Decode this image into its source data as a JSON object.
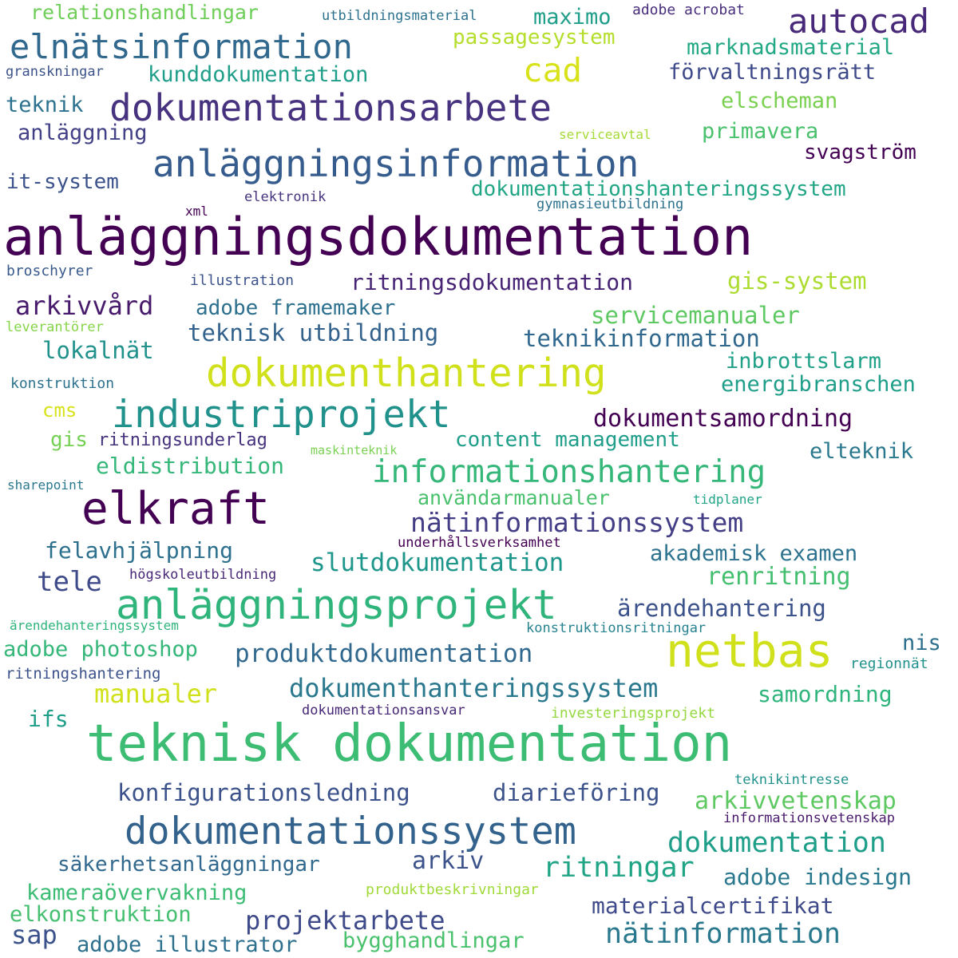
{
  "words": [
    {
      "text": "anläggningsdokumentation",
      "color": "#440154"
    },
    {
      "text": "teknisk dokumentation",
      "color": "#3dbc74"
    },
    {
      "text": "dokumentationsarbete",
      "color": "#46327e"
    },
    {
      "text": "elkraft",
      "color": "#440154"
    },
    {
      "text": "dokumenthantering",
      "color": "#d0e11c"
    },
    {
      "text": "anläggningsinformation",
      "color": "#365c8d"
    },
    {
      "text": "anläggningsprojekt",
      "color": "#2fb47c"
    },
    {
      "text": "industriprojekt",
      "color": "#21918c"
    },
    {
      "text": "netbas",
      "color": "#d0e11c"
    },
    {
      "text": "dokumentationssystem",
      "color": "#33638d"
    },
    {
      "text": "elnätsinformation",
      "color": "#31688e"
    },
    {
      "text": "autocad",
      "color": "#482878"
    },
    {
      "text": "informationshantering",
      "color": "#35b779"
    },
    {
      "text": "cad",
      "color": "#d8e219"
    },
    {
      "text": "nätinformationssystem",
      "color": "#433e85"
    },
    {
      "text": "dokumentation",
      "color": "#1f9e89"
    },
    {
      "text": "nätinformation",
      "color": "#2a788e"
    },
    {
      "text": "ritningar",
      "color": "#20a486"
    },
    {
      "text": "dokumenthanteringssystem",
      "color": "#2a788e"
    },
    {
      "text": "dokumentsamordning",
      "color": "#440154"
    },
    {
      "text": "slutdokumentation",
      "color": "#1f968b"
    },
    {
      "text": "produktdokumentation",
      "color": "#31688e"
    },
    {
      "text": "projektarbete",
      "color": "#3e4a89"
    },
    {
      "text": "konfigurationsledning",
      "color": "#3b528b"
    },
    {
      "text": "diarieföring",
      "color": "#3b528b"
    },
    {
      "text": "arkivvetenskap",
      "color": "#5ec962"
    },
    {
      "text": "förvaltningsrätt",
      "color": "#3e4a89"
    },
    {
      "text": "kunddokumentation",
      "color": "#1f9e89"
    },
    {
      "text": "relationshandlingar",
      "color": "#6ece58"
    },
    {
      "text": "utbildningsmaterial",
      "color": "#2c728e"
    },
    {
      "text": "maximo",
      "color": "#1f9e89"
    },
    {
      "text": "adobe acrobat",
      "color": "#472d7b"
    },
    {
      "text": "passagesystem",
      "color": "#b5de2b"
    },
    {
      "text": "marknadsmaterial",
      "color": "#22a884"
    },
    {
      "text": "granskningar",
      "color": "#3b528b"
    },
    {
      "text": "teknik",
      "color": "#2c728e"
    },
    {
      "text": "elscheman",
      "color": "#7ad151"
    },
    {
      "text": "anläggning",
      "color": "#424086"
    },
    {
      "text": "primavera",
      "color": "#4ac16d"
    },
    {
      "text": "serviceavtal",
      "color": "#a5db36"
    },
    {
      "text": "svagström",
      "color": "#440154"
    },
    {
      "text": "it-system",
      "color": "#3b528b"
    },
    {
      "text": "dokumentationshanteringssystem",
      "color": "#21a685"
    },
    {
      "text": "elektronik",
      "color": "#46337e"
    },
    {
      "text": "gymnasieutbildning",
      "color": "#2c728e"
    },
    {
      "text": "xml",
      "color": "#440154"
    },
    {
      "text": "broschyrer",
      "color": "#38598c"
    },
    {
      "text": "illustration",
      "color": "#3b528b"
    },
    {
      "text": "ritningsdokumentation",
      "color": "#482475"
    },
    {
      "text": "gis-system",
      "color": "#addc30"
    },
    {
      "text": "arkivvård",
      "color": "#481a6c"
    },
    {
      "text": "adobe framemaker",
      "color": "#2d708e"
    },
    {
      "text": "servicemanualer",
      "color": "#5ec962"
    },
    {
      "text": "leverantörer",
      "color": "#86d549"
    },
    {
      "text": "teknisk utbildning",
      "color": "#33638d"
    },
    {
      "text": "teknikinformation",
      "color": "#31688e"
    },
    {
      "text": "lokalnät",
      "color": "#21918c"
    },
    {
      "text": "inbrottslarm",
      "color": "#1fa088"
    },
    {
      "text": "konstruktion",
      "color": "#2c728e"
    },
    {
      "text": "energibranschen",
      "color": "#1f9e89"
    },
    {
      "text": "cms",
      "color": "#d8e219"
    },
    {
      "text": "gis",
      "color": "#75d054"
    },
    {
      "text": "ritningsunderlag",
      "color": "#46327e"
    },
    {
      "text": "maskinteknik",
      "color": "#7ad151"
    },
    {
      "text": "content management",
      "color": "#1f9e89"
    },
    {
      "text": "elteknik",
      "color": "#2a788e"
    },
    {
      "text": "eldistribution",
      "color": "#35b779"
    },
    {
      "text": "sharepoint",
      "color": "#2a788e"
    },
    {
      "text": "användarmanualer",
      "color": "#4ac16d"
    },
    {
      "text": "tidplaner",
      "color": "#20a486"
    },
    {
      "text": "felavhjälpning",
      "color": "#2d708e"
    },
    {
      "text": "underhållsverksamhet",
      "color": "#440154"
    },
    {
      "text": "akademisk examen",
      "color": "#2c728e"
    },
    {
      "text": "tele",
      "color": "#3e4a89"
    },
    {
      "text": "högskoleutbildning",
      "color": "#482878"
    },
    {
      "text": "renritning",
      "color": "#44bf70"
    },
    {
      "text": "ärendehantering",
      "color": "#3b528b"
    },
    {
      "text": "ärendehanteringssystem",
      "color": "#2fb47c"
    },
    {
      "text": "konstruktionsritningar",
      "color": "#26828e"
    },
    {
      "text": "adobe photoshop",
      "color": "#35b779"
    },
    {
      "text": "nis",
      "color": "#2d708e"
    },
    {
      "text": "regionnät",
      "color": "#21918c"
    },
    {
      "text": "ritningshantering",
      "color": "#3b528b"
    },
    {
      "text": "manualer",
      "color": "#d0e11c"
    },
    {
      "text": "samordning",
      "color": "#2fb47c"
    },
    {
      "text": "dokumentationsansvar",
      "color": "#482878"
    },
    {
      "text": "investeringsprojekt",
      "color": "#95d840"
    },
    {
      "text": "ifs",
      "color": "#1f9e89"
    },
    {
      "text": "teknikintresse",
      "color": "#21918c"
    },
    {
      "text": "informationsvetenskap",
      "color": "#481a6c"
    },
    {
      "text": "säkerhetsanläggningar",
      "color": "#31688e"
    },
    {
      "text": "arkiv",
      "color": "#3b528b"
    },
    {
      "text": "adobe indesign",
      "color": "#2a788e"
    },
    {
      "text": "produktbeskrivningar",
      "color": "#a0da39"
    },
    {
      "text": "kameraövervakning",
      "color": "#3dbc74"
    },
    {
      "text": "materialcertifikat",
      "color": "#3e4a89"
    },
    {
      "text": "elkonstruktion",
      "color": "#44bf70"
    },
    {
      "text": "sap",
      "color": "#3b528b"
    },
    {
      "text": "adobe illustrator",
      "color": "#2d708e"
    },
    {
      "text": "bygghandlingar",
      "color": "#4ac16d"
    }
  ]
}
